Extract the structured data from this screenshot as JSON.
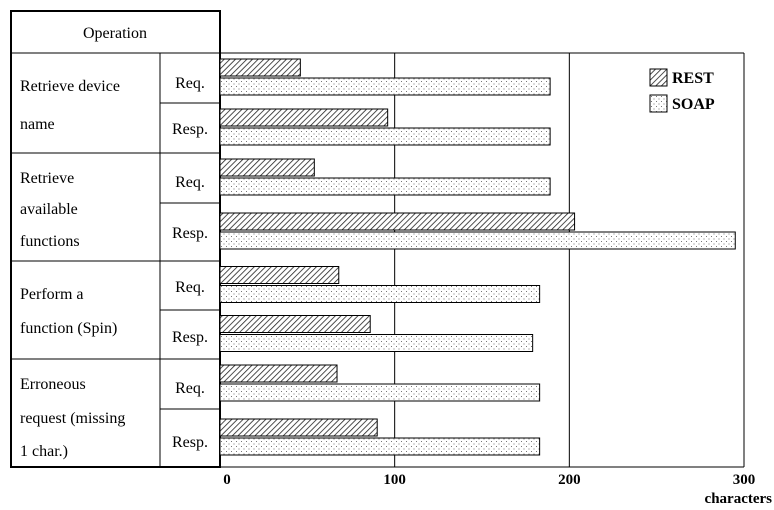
{
  "table": {
    "header": "Operation",
    "groups": [
      {
        "lines": [
          "Retrieve device",
          "name"
        ],
        "rows": [
          "Req.",
          "Resp."
        ]
      },
      {
        "lines": [
          "Retrieve",
          "available",
          "functions"
        ],
        "rows": [
          "Req.",
          "Resp."
        ]
      },
      {
        "lines": [
          "Perform a",
          "function (Spin)"
        ],
        "rows": [
          "Req.",
          "Resp."
        ]
      },
      {
        "lines": [
          "Erroneous",
          "request (missing",
          "1 char.)"
        ],
        "rows": [
          "Req.",
          "Resp."
        ]
      }
    ]
  },
  "chart_data": {
    "type": "bar",
    "orientation": "horizontal",
    "categories": [
      "Retrieve device name Req.",
      "Retrieve device name Resp.",
      "Retrieve available functions Req.",
      "Retrieve available functions Resp.",
      "Perform a function (Spin) Req.",
      "Perform a function (Spin) Resp.",
      "Erroneous request (missing 1 char.) Req.",
      "Erroneous request (missing 1 char.) Resp."
    ],
    "series": [
      {
        "name": "REST",
        "pattern": "diagonal-hatch",
        "values": [
          46,
          96,
          54,
          203,
          68,
          86,
          67,
          90
        ]
      },
      {
        "name": "SOAP",
        "pattern": "dots",
        "values": [
          189,
          189,
          189,
          295,
          183,
          179,
          183,
          183
        ]
      }
    ],
    "xlim": [
      0,
      300
    ],
    "xticks": [
      "0",
      "100",
      "200",
      "300"
    ],
    "xlabel": "characters",
    "ylabel": "",
    "title": "",
    "grid": "vertical",
    "legend": "top-right"
  }
}
